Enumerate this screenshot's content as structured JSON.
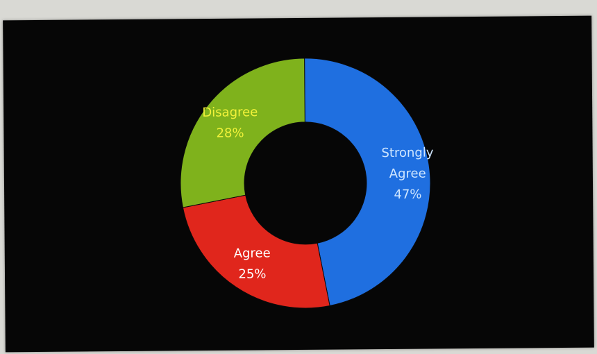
{
  "chart_data": {
    "type": "pie",
    "variant": "donut",
    "title": "",
    "legend": "none",
    "slices": [
      {
        "label_lines": [
          "Strongly",
          "Agree"
        ],
        "value": 47,
        "value_label": "47%",
        "color": "#1f6fe0",
        "label_color": "#cfe6ff"
      },
      {
        "label_lines": [
          "Agree"
        ],
        "value": 25,
        "value_label": "25%",
        "color": "#e0261c",
        "label_color": "#ffffff"
      },
      {
        "label_lines": [
          "Disagree"
        ],
        "value": 28,
        "value_label": "28%",
        "color": "#7fb21c",
        "label_color": "#f2f23a"
      }
    ]
  }
}
